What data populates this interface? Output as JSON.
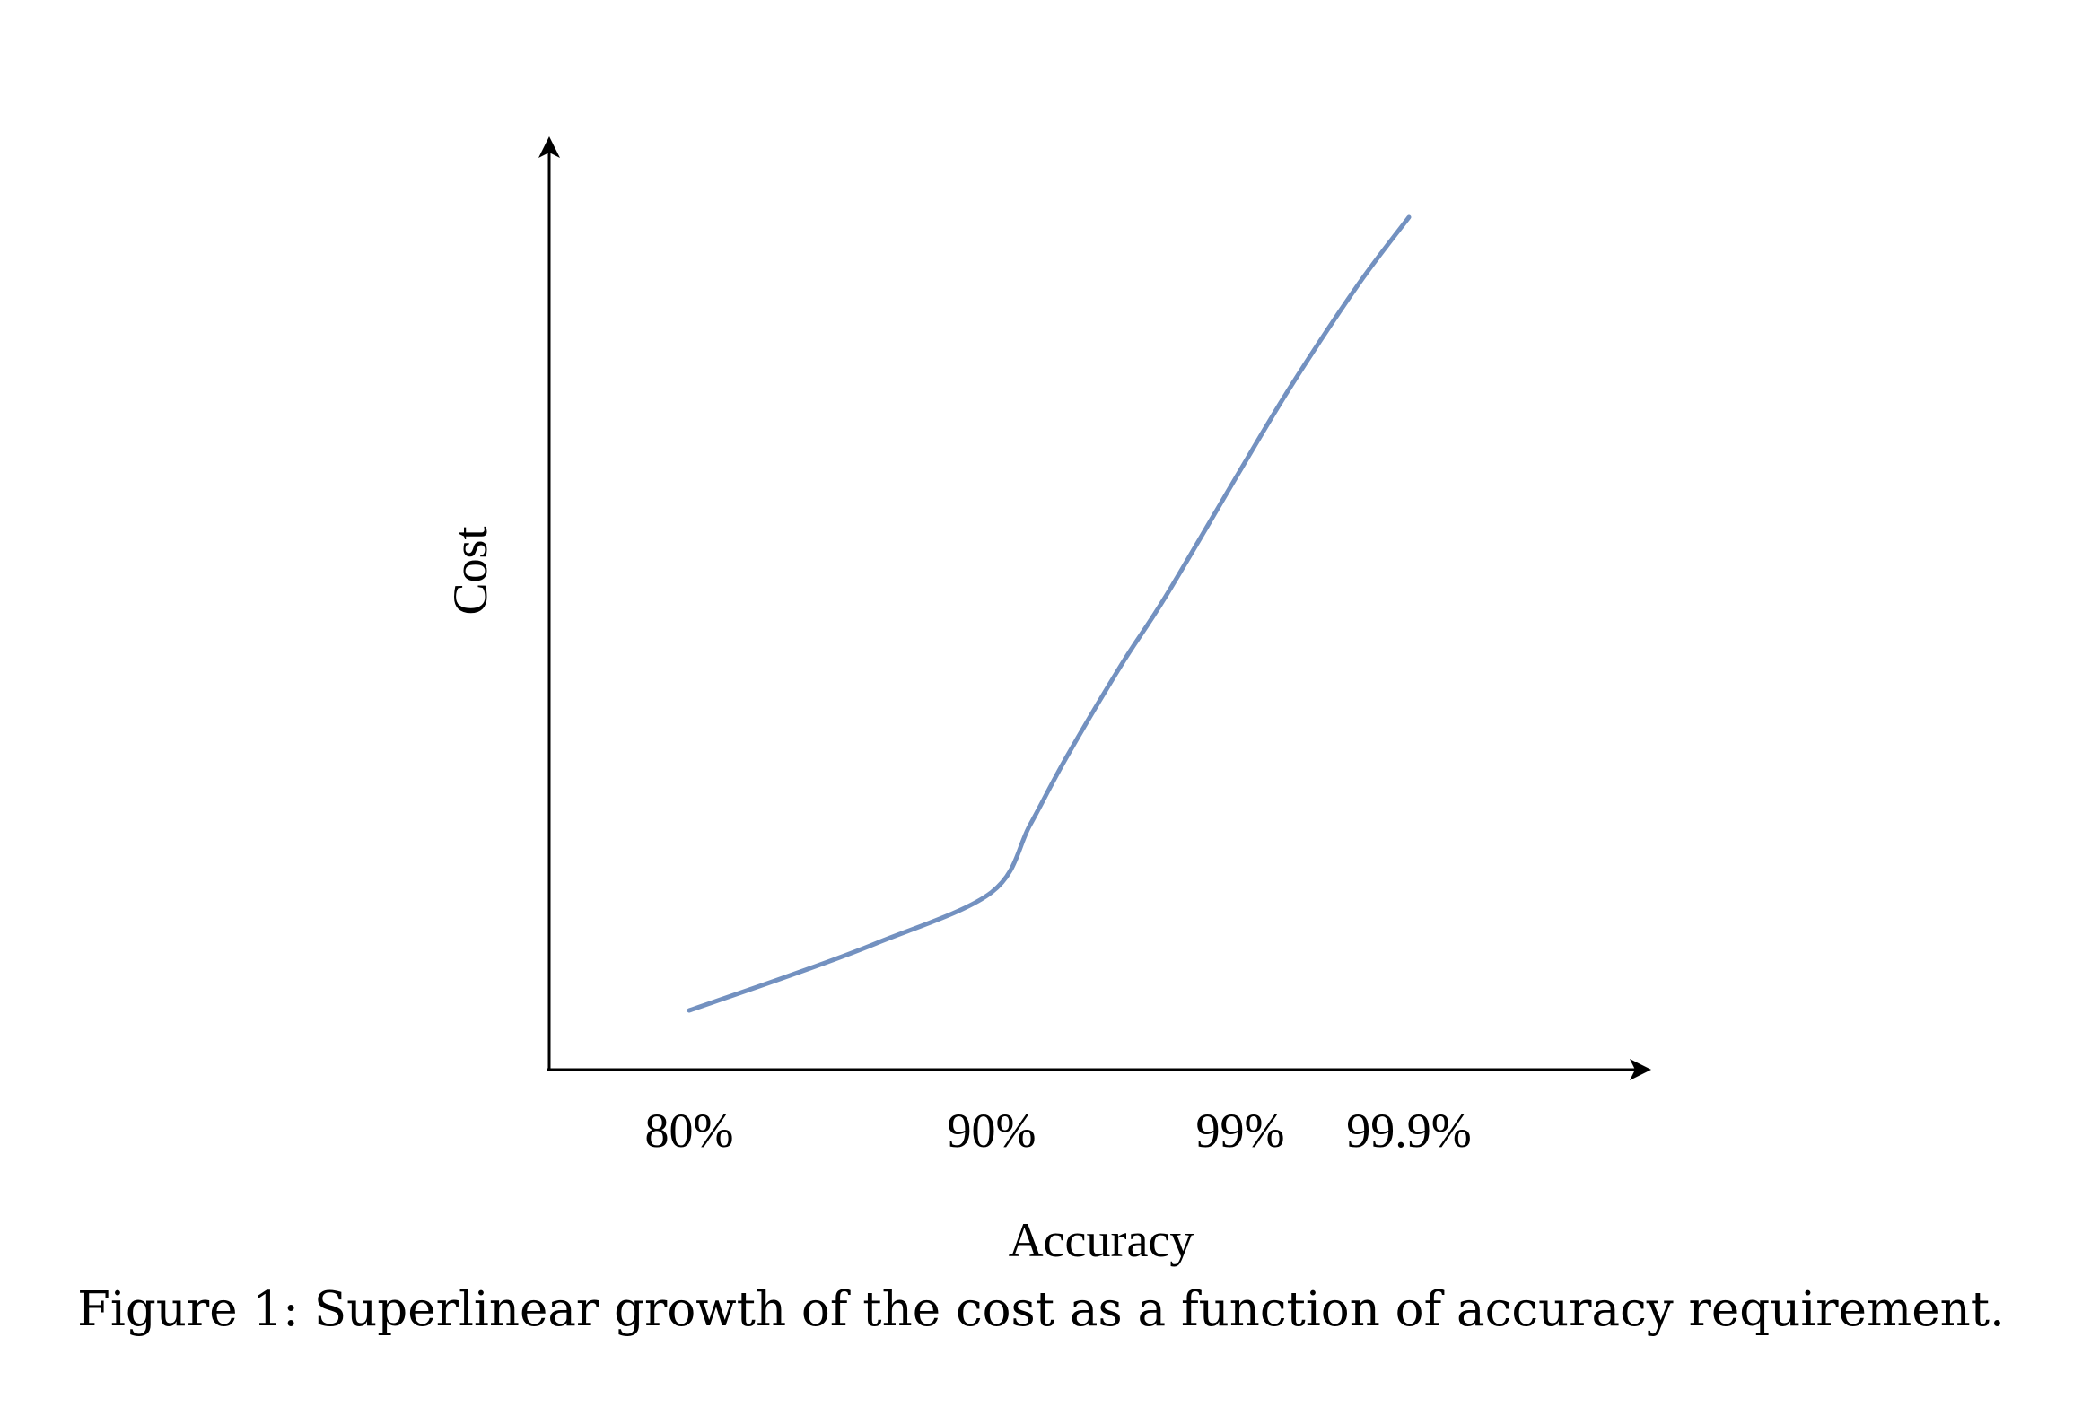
{
  "chart_data": {
    "type": "line",
    "title": "",
    "xlabel": "Accuracy",
    "ylabel": "Cost",
    "x_ticks": [
      "80%",
      "90%",
      "99%",
      "99.9%"
    ],
    "x_scale": "log(1 - accuracy), reversed",
    "x": [
      0.8,
      0.84,
      0.87,
      0.9,
      0.93,
      0.95,
      0.97,
      0.98,
      0.99,
      0.995,
      0.998,
      0.999
    ],
    "series": [
      {
        "name": "",
        "color": "#7391c0",
        "values": [
          0.06,
          0.1,
          0.14,
          0.2,
          0.28,
          0.36,
          0.47,
          0.55,
          0.7,
          0.8,
          0.92,
          1.0
        ]
      }
    ],
    "y_ticks_shown": false,
    "axes": "arrows, no box",
    "grid": false,
    "legend": "none"
  },
  "caption": {
    "text": "Figure 1: Superlinear growth of the cost as a function of accuracy requirement."
  }
}
